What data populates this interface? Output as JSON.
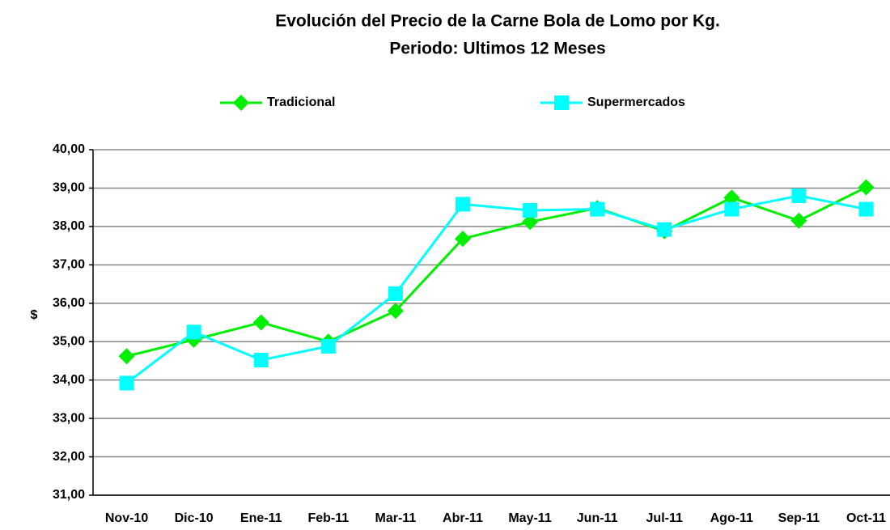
{
  "chart_data": {
    "type": "line",
    "title": "Evolución del Precio de la Carne Bola de Lomo por Kg.",
    "subtitle": "Periodo: Ultimos 12 Meses",
    "y_label": "$",
    "categories": [
      "Nov-10",
      "Dic-10",
      "Ene-11",
      "Feb-11",
      "Mar-11",
      "Abr-11",
      "May-11",
      "Jun-11",
      "Jul-11",
      "Ago-11",
      "Sep-11",
      "Oct-11"
    ],
    "series": [
      {
        "name": "Tradicional",
        "color": "#00ee00",
        "marker": "diamond",
        "values": [
          34.62,
          35.05,
          35.5,
          35.0,
          35.8,
          37.68,
          38.12,
          38.48,
          37.88,
          38.75,
          38.15,
          39.02
        ]
      },
      {
        "name": "Supermercados",
        "color": "#00ffff",
        "marker": "square",
        "values": [
          33.92,
          35.25,
          34.52,
          34.88,
          36.25,
          38.58,
          38.42,
          38.45,
          37.92,
          38.45,
          38.8,
          38.45
        ]
      }
    ],
    "ylim": [
      31,
      40
    ],
    "yticks": [
      {
        "value": 31,
        "label": "31,00"
      },
      {
        "value": 32,
        "label": "32,00"
      },
      {
        "value": 33,
        "label": "33,00"
      },
      {
        "value": 34,
        "label": "34,00"
      },
      {
        "value": 35,
        "label": "35,00"
      },
      {
        "value": 36,
        "label": "36,00"
      },
      {
        "value": 37,
        "label": "37,00"
      },
      {
        "value": 38,
        "label": "38,00"
      },
      {
        "value": 39,
        "label": "39,00"
      },
      {
        "value": 40,
        "label": "40,00"
      }
    ],
    "grid": true,
    "legend": "top"
  }
}
